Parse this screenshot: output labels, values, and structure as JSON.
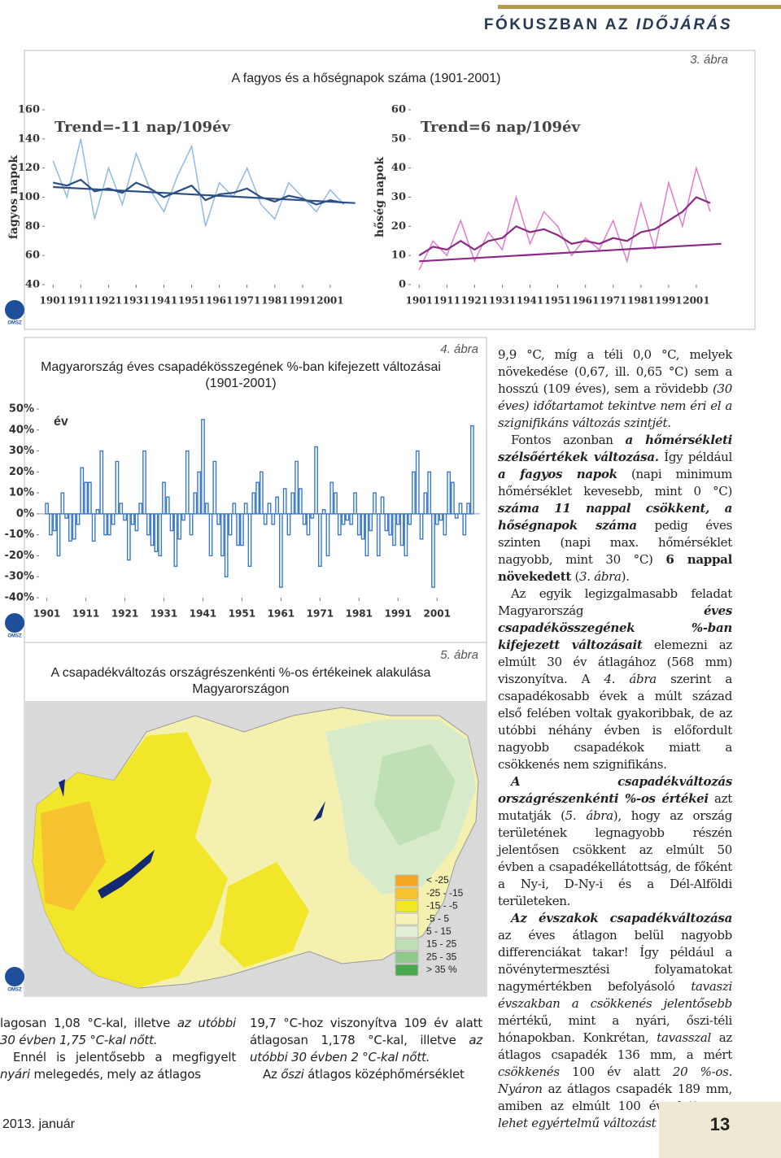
{
  "header": {
    "kicker": "FÓKUSZBAN AZ",
    "kicker_em": "IDŐJÁRÁS"
  },
  "figures": [
    {
      "label": "3. ábra",
      "title_lines": [
        "A fagyos és a hőségnapok száma (1901-2001)"
      ],
      "logo": "OMSZ",
      "charts": [
        {
          "type": "line",
          "ylabel": "fagyos napok",
          "annotation": "Trend=-11 nap/109év",
          "xlim": [
            1898,
            2011
          ],
          "ylim": [
            40,
            160
          ],
          "yticks": [
            40,
            60,
            80,
            100,
            120,
            140,
            160
          ],
          "xticks": [
            1901,
            1911,
            1921,
            1931,
            1941,
            1951,
            1961,
            1971,
            1981,
            1991,
            2001
          ],
          "series": [
            {
              "color": "#8fbbe4",
              "x": [
                1901,
                1906,
                1911,
                1916,
                1921,
                1926,
                1931,
                1936,
                1941,
                1946,
                1951,
                1956,
                1961,
                1966,
                1971,
                1976,
                1981,
                1986,
                1991,
                1996,
                2001,
                2006
              ],
              "values": [
                125,
                100,
                140,
                85,
                120,
                95,
                130,
                105,
                90,
                115,
                135,
                80,
                110,
                100,
                120,
                95,
                85,
                110,
                100,
                90,
                105,
                95
              ]
            },
            {
              "color": "#2b4f86",
              "x": [
                1901,
                1906,
                1911,
                1916,
                1921,
                1926,
                1931,
                1936,
                1941,
                1946,
                1951,
                1956,
                1961,
                1966,
                1971,
                1976,
                1981,
                1986,
                1991,
                1996,
                2001,
                2006
              ],
              "values": [
                110,
                108,
                112,
                104,
                106,
                103,
                110,
                106,
                100,
                104,
                108,
                98,
                102,
                103,
                106,
                100,
                97,
                101,
                99,
                95,
                98,
                96
              ]
            },
            {
              "color": "#2b4f86",
              "x": [
                1901,
                2010
              ],
              "values": [
                107,
                96
              ]
            }
          ]
        },
        {
          "type": "line",
          "ylabel": "hőség napok",
          "annotation": "Trend=6 nap/109év",
          "xlim": [
            1898,
            2011
          ],
          "ylim": [
            0,
            60
          ],
          "yticks": [
            0,
            10,
            20,
            30,
            40,
            50,
            60
          ],
          "xticks": [
            1901,
            1911,
            1921,
            1931,
            1941,
            1951,
            1961,
            1971,
            1981,
            1991,
            2001
          ],
          "series": [
            {
              "color": "#e27ccd",
              "x": [
                1901,
                1906,
                1911,
                1916,
                1921,
                1926,
                1931,
                1936,
                1941,
                1946,
                1951,
                1956,
                1961,
                1966,
                1971,
                1976,
                1981,
                1986,
                1991,
                1996,
                2001,
                2006
              ],
              "values": [
                5,
                15,
                10,
                22,
                8,
                18,
                12,
                30,
                14,
                25,
                20,
                10,
                16,
                12,
                22,
                8,
                28,
                12,
                35,
                20,
                40,
                25
              ]
            },
            {
              "color": "#8a2a86",
              "x": [
                1901,
                1906,
                1911,
                1916,
                1921,
                1926,
                1931,
                1936,
                1941,
                1946,
                1951,
                1956,
                1961,
                1966,
                1971,
                1976,
                1981,
                1986,
                1991,
                1996,
                2001,
                2006
              ],
              "values": [
                10,
                13,
                12,
                15,
                12,
                15,
                16,
                20,
                18,
                19,
                17,
                14,
                15,
                14,
                16,
                15,
                18,
                19,
                22,
                25,
                30,
                28
              ]
            },
            {
              "color": "#8a2a86",
              "x": [
                1901,
                2010
              ],
              "values": [
                8,
                14
              ]
            }
          ]
        }
      ]
    },
    {
      "label": "4. ábra",
      "title_lines": [
        "Magyarország éves csapadékösszegének %-ban kifejezett változásai",
        "(1901-2001)"
      ],
      "logo": "OMSZ",
      "charts": [
        {
          "type": "bar",
          "annotation": "év",
          "color": "#3a78c8",
          "xlim": [
            1899,
            2012
          ],
          "ylim": [
            -40,
            50
          ],
          "yticks": [
            {
              "value": -40,
              "label": "-40%"
            },
            {
              "value": -30,
              "label": "-30%"
            },
            {
              "value": -20,
              "label": "-20%"
            },
            {
              "value": -10,
              "label": "-10%"
            },
            {
              "value": 0,
              "label": "0%"
            },
            {
              "value": 10,
              "label": "10%"
            },
            {
              "value": 20,
              "label": "20%"
            },
            {
              "value": 30,
              "label": "30%"
            },
            {
              "value": 40,
              "label": "40%"
            },
            {
              "value": 50,
              "label": "50%"
            }
          ],
          "xticks": [
            1901,
            1911,
            1921,
            1931,
            1941,
            1951,
            1961,
            1971,
            1981,
            1991,
            2001
          ],
          "x": [
            1901,
            1902,
            1903,
            1904,
            1905,
            1906,
            1907,
            1908,
            1909,
            1910,
            1911,
            1912,
            1913,
            1914,
            1915,
            1916,
            1917,
            1918,
            1919,
            1920,
            1921,
            1922,
            1923,
            1924,
            1925,
            1926,
            1927,
            1928,
            1929,
            1930,
            1931,
            1932,
            1933,
            1934,
            1935,
            1936,
            1937,
            1938,
            1939,
            1940,
            1941,
            1942,
            1943,
            1944,
            1945,
            1946,
            1947,
            1948,
            1949,
            1950,
            1951,
            1952,
            1953,
            1954,
            1955,
            1956,
            1957,
            1958,
            1959,
            1960,
            1961,
            1962,
            1963,
            1964,
            1965,
            1966,
            1967,
            1968,
            1969,
            1970,
            1971,
            1972,
            1973,
            1974,
            1975,
            1976,
            1977,
            1978,
            1979,
            1980,
            1981,
            1982,
            1983,
            1984,
            1985,
            1986,
            1987,
            1988,
            1989,
            1990,
            1991,
            1992,
            1993,
            1994,
            1995,
            1996,
            1997,
            1998,
            1999,
            2000,
            2001,
            2002,
            2003,
            2004,
            2005,
            2006,
            2007,
            2008,
            2009,
            2010
          ],
          "values": [
            5,
            -10,
            -8,
            -20,
            10,
            -2,
            -13,
            -12,
            -5,
            22,
            15,
            15,
            -13,
            2,
            30,
            -10,
            -10,
            -5,
            25,
            5,
            -3,
            -22,
            -5,
            -8,
            5,
            30,
            -10,
            -15,
            -18,
            -20,
            15,
            8,
            -8,
            -25,
            -12,
            -3,
            30,
            -10,
            10,
            20,
            45,
            5,
            -20,
            25,
            -5,
            -20,
            -30,
            -10,
            5,
            -15,
            -15,
            5,
            -25,
            10,
            15,
            20,
            -5,
            5,
            -5,
            8,
            -35,
            12,
            -10,
            10,
            25,
            12,
            -5,
            -10,
            -2,
            32,
            -25,
            2,
            -20,
            15,
            10,
            -10,
            -5,
            -3,
            -5,
            10,
            -10,
            -12,
            -20,
            -8,
            10,
            -20,
            8,
            -8,
            -10,
            -15,
            -5,
            -15,
            -20,
            -5,
            20,
            30,
            -12,
            10,
            20,
            -35,
            -5,
            -3,
            -10,
            20,
            15,
            -2,
            5,
            -10,
            5,
            42
          ]
        }
      ]
    },
    {
      "label": "5. ábra",
      "title_lines": [
        "A csapadékváltozás országrészenkénti %-os értékeinek alakulása",
        "Magyarországon"
      ],
      "logo": "OMSZ",
      "legend": [
        {
          "label": "< -25",
          "color": "#f5a623"
        },
        {
          "label": "-25 - -15",
          "color": "#f7c230"
        },
        {
          "label": "-15 - -5",
          "color": "#f2e62a"
        },
        {
          "label": "-5 - 5",
          "color": "#f6f3b4"
        },
        {
          "label": "5 - 15",
          "color": "#e3f0d6"
        },
        {
          "label": "15 - 25",
          "color": "#bfe0b4"
        },
        {
          "label": "25 - 35",
          "color": "#8fc98a"
        },
        {
          "label": "> 35 %",
          "color": "#4aa84f"
        }
      ]
    }
  ],
  "columns": [
    [
      [
        {
          "text": "lagosan 1,08 °C-kal, illetve "
        },
        {
          "text": "az utóbbi 30 évben 1,75 °C-kal nőtt.",
          "style": "i"
        }
      ],
      [
        {
          "text": "Ennél is jelentősebb a megfigyelt "
        },
        {
          "text": "nyári",
          "style": "i"
        },
        {
          "text": " melegedés, mely az átlagos"
        }
      ]
    ],
    [
      [
        {
          "text": "19,7 °C-hoz viszonyítva 109 év alatt átlagosan 1,178 °C-kal, illetve "
        },
        {
          "text": "az utóbbi 30 évben 2 °C-kal nőtt.",
          "style": "i"
        }
      ],
      [
        {
          "text": "Az "
        },
        {
          "text": "őszi",
          "style": "i"
        },
        {
          "text": " átlagos középhőmérséklet"
        }
      ]
    ],
    [
      [
        {
          "text": "9,9 °C, míg a téli 0,0 °C, melyek növekedése (0,67, ill. 0,65 °C) sem a hosszú (109 éves), sem a rövidebb "
        },
        {
          "text": "(30 éves) időtartamot tekintve nem éri el a szignifikáns változás szintjét.",
          "style": "i"
        }
      ],
      [
        {
          "text": "Fontos azonban "
        },
        {
          "text": "a hőmérsékleti szélsőértékek változása.",
          "style": "bi"
        },
        {
          "text": " Így például "
        },
        {
          "text": "a fagyos napok",
          "style": "bi"
        },
        {
          "text": " (napi minimum hőmérséklet kevesebb, mint 0 °C) "
        },
        {
          "text": "száma 11 nappal csökkent, a hőségnapok száma",
          "style": "bi"
        },
        {
          "text": " pedig éves szinten (napi max. hőmérséklet nagyobb, mint 30 °C) "
        },
        {
          "text": "6 nappal növekedett",
          "style": "b"
        },
        {
          "text": " ("
        },
        {
          "text": "3. ábra",
          "style": "i"
        },
        {
          "text": ")."
        }
      ],
      [
        {
          "text": "Az egyik legizgalmasabb feladat Magyarország "
        },
        {
          "text": "éves csapadékösszegének %-ban kifejezett változásait",
          "style": "bi"
        },
        {
          "text": " elemezni az elmúlt 30 év átlagához (568 mm) viszonyítva. A "
        },
        {
          "text": "4. ábra",
          "style": "i"
        },
        {
          "text": " szerint a csapadékosabb évek a múlt század első felében voltak gyakoribbak, de az utóbbi néhány évben is előfordult nagyobb csapadékok miatt a csökkenés nem szignifikáns."
        }
      ],
      [
        {
          "text": "A csapadékváltozás országrészenkénti %-os értékei",
          "style": "bi"
        },
        {
          "text": " azt mutatják ("
        },
        {
          "text": "5. ábra",
          "style": "i"
        },
        {
          "text": "), hogy az ország területének legnagyobb részén jelentősen csökkent az elmúlt 50 évben a csapadékellátottság, de főként a Ny-i, D-Ny-i és a Dél-Alföldi területeken."
        }
      ],
      [
        {
          "text": "Az évszakok csapadékváltozása",
          "style": "bi"
        },
        {
          "text": " az éves átlagon belül nagyobb differenciákat takar! Így például a növénytermesztési folyamatokat nagymértékben befolyásoló "
        },
        {
          "text": "tavaszi évszakban a csökkenés jelentősebb",
          "style": "i"
        },
        {
          "text": " mértékű, mint a nyári, őszi-téli hónapokban. Konkrétan, "
        },
        {
          "text": "tavasszal",
          "style": "i"
        },
        {
          "text": " az átlagos csapadék 136 mm, a mért "
        },
        {
          "text": "csökkenés",
          "style": "i"
        },
        {
          "text": " 100 év alatt "
        },
        {
          "text": "20 %-os. Nyáron",
          "style": "i"
        },
        {
          "text": " az átlagos csapadék 189 mm, amiben az elmúlt 100 év alatt "
        },
        {
          "text": "nem lehet egyértelmű változást kimutat-",
          "style": "i"
        }
      ]
    ]
  ],
  "footer": {
    "date": "2013. január",
    "page": "13"
  }
}
